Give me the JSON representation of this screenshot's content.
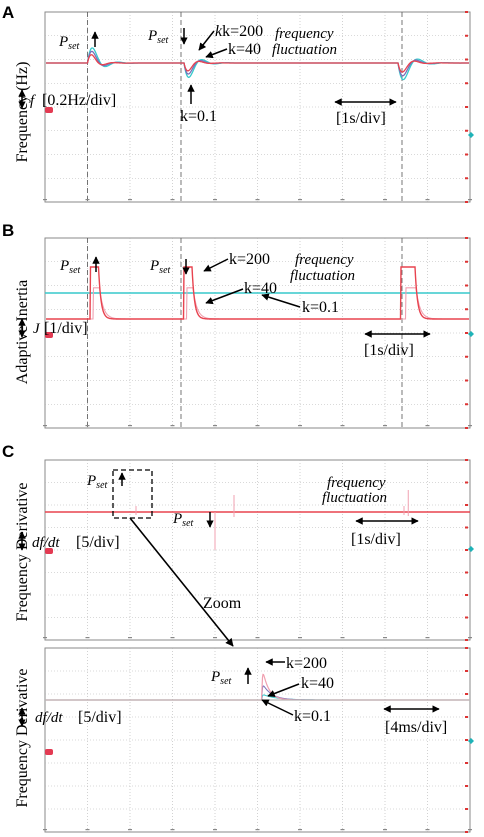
{
  "colors": {
    "k200": "#e8434f",
    "k40": "#7a6fb8",
    "k01": "#36c9cc",
    "pink": "#f0a0b0",
    "grid": "#b4b4b4",
    "frame": "#8a8a8a",
    "marker_red": "#e33a52",
    "marker_cyan": "#1eb3b8"
  },
  "panels": {
    "A": {
      "letter": "A",
      "ylabel": "Frequency (Hz)",
      "pset_up": "P",
      "pset_down": "P",
      "pset_sub": "set",
      "k200": "k=200",
      "k40": "k=40",
      "k01": "k=0.1",
      "fluct_1": "frequency",
      "fluct_2": "fluctuation",
      "scale_sym": "f",
      "scale_val": "[0.2Hz/div]",
      "time_div": "[1s/div]"
    },
    "B": {
      "letter": "B",
      "ylabel": "Adaptive Inertia",
      "pset_up": "P",
      "pset_down": "P",
      "pset_sub": "set",
      "k200": "k=200",
      "k40": "k=40",
      "k01": "k=0.1",
      "fluct_1": "frequency",
      "fluct_2": "fluctuation",
      "scale_sym": "J",
      "scale_val": "[1/div]",
      "time_div": "[1s/div]"
    },
    "C": {
      "letter": "C",
      "ylabel": "Frequency Derivative",
      "pset_up": "P",
      "pset_down": "P",
      "pset_sub": "set",
      "fluct_1": "frequency",
      "fluct_2": "fluctuation",
      "scale_sym": "df/dt",
      "scale_val": "[5/div]",
      "time_div": "[1s/div]",
      "zoom": "Zoom"
    },
    "D": {
      "ylabel": "Frequency Derivative",
      "pset_up": "P",
      "pset_sub": "set",
      "k200": "k=200",
      "k40": "k=40",
      "k01": "k=0.1",
      "scale_sym": "df/dt",
      "scale_val": "[5/div]",
      "time_div": "[4ms/div]"
    }
  },
  "chart_data": [
    {
      "type": "line",
      "panel": "A",
      "ylabel": "Frequency (Hz)",
      "y_scale": "0.2 Hz/div",
      "x_scale": "1 s/div",
      "x_div": [
        0,
        10
      ],
      "events": [
        {
          "label": "Pset up",
          "t_div": 1
        },
        {
          "label": "Pset down",
          "t_div": 3.2
        },
        {
          "label": "frequency fluctuation",
          "t_div": 8.4
        }
      ],
      "series": [
        {
          "name": "k=200",
          "color": "#e8434f"
        },
        {
          "name": "k=40",
          "color": "#7a6fb8"
        },
        {
          "name": "k=0.1",
          "color": "#36c9cc"
        }
      ]
    },
    {
      "type": "line",
      "panel": "B",
      "ylabel": "Adaptive Inertia",
      "y_scale": "1/div",
      "x_scale": "1 s/div",
      "x_div": [
        0,
        10
      ],
      "events": [
        {
          "label": "Pset up",
          "t_div": 1
        },
        {
          "label": "Pset down",
          "t_div": 3.2
        },
        {
          "label": "frequency fluctuation",
          "t_div": 8.4
        }
      ],
      "series": [
        {
          "name": "k=200",
          "color": "#e8434f"
        },
        {
          "name": "k=40",
          "color": "#7a6fb8"
        },
        {
          "name": "k=0.1",
          "color": "#36c9cc"
        }
      ]
    },
    {
      "type": "line",
      "panel": "C",
      "ylabel": "Frequency Derivative",
      "y_scale": "5/div",
      "x_scale": "1 s/div",
      "x_div": [
        0,
        10
      ],
      "events": [
        {
          "label": "Pset up",
          "t_div": 2.1
        },
        {
          "label": "Pset down",
          "t_div": 4.4
        },
        {
          "label": "frequency fluctuation",
          "t_div": 8.7
        }
      ]
    },
    {
      "type": "line",
      "panel": "D",
      "ylabel": "Frequency Derivative",
      "y_scale": "5/div",
      "x_scale": "4 ms/div",
      "x_div": [
        0,
        10
      ],
      "events": [
        {
          "label": "Pset up",
          "t_div": 5.1
        }
      ],
      "series": [
        {
          "name": "k=200",
          "color": "#e8434f"
        },
        {
          "name": "k=40",
          "color": "#7a6fb8"
        },
        {
          "name": "k=0.1",
          "color": "#36c9cc"
        }
      ]
    }
  ]
}
